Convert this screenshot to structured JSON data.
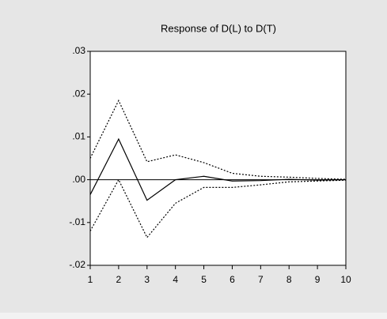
{
  "chart_data": {
    "type": "line",
    "title": "Response of D(L) to D(T)",
    "x": [
      1,
      2,
      3,
      4,
      5,
      6,
      7,
      8,
      9,
      10
    ],
    "series": [
      {
        "color": "#000000",
        "style": "solid",
        "values": [
          -0.0035,
          0.0095,
          -0.0048,
          0.0,
          0.0008,
          -0.0003,
          -0.0002,
          0.0001,
          -0.0001,
          0.0
        ]
      },
      {
        "color": "#000000",
        "style": "dotted",
        "values": [
          0.005,
          0.0185,
          0.0042,
          0.0058,
          0.004,
          0.0015,
          0.0008,
          0.0006,
          0.0003,
          0.0001
        ]
      },
      {
        "color": "#000000",
        "style": "dotted",
        "values": [
          -0.012,
          0.0,
          -0.0135,
          -0.0055,
          -0.0018,
          -0.0018,
          -0.0012,
          -0.0005,
          -0.0003,
          -0.0001
        ]
      }
    ],
    "xlim": [
      1,
      10
    ],
    "xticks": [
      1,
      2,
      3,
      4,
      5,
      6,
      7,
      8,
      9,
      10
    ],
    "ylim": [
      -0.02,
      0.03
    ],
    "yticks": [
      {
        "value": 0.03,
        "label": ".03"
      },
      {
        "value": 0.02,
        "label": ".02"
      },
      {
        "value": 0.01,
        "label": ".01"
      },
      {
        "value": 0.0,
        "label": ".00"
      },
      {
        "value": -0.01,
        "label": "-.01"
      },
      {
        "value": -0.02,
        "label": "-.02"
      }
    ],
    "zero_line": true
  }
}
